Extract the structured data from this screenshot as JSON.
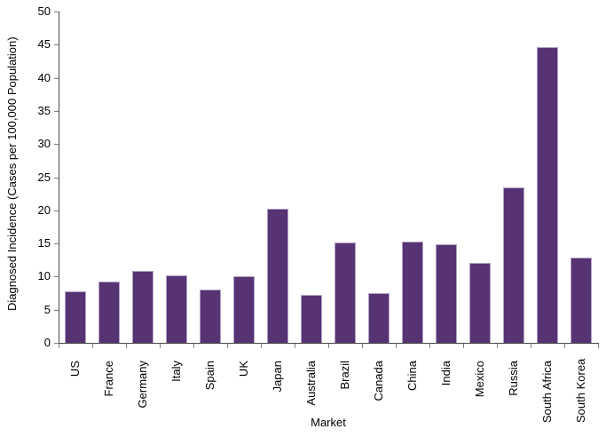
{
  "chart_data": {
    "type": "bar",
    "title": "",
    "xlabel": "Market",
    "ylabel": "Diagnosed Incidence (Cases per 100,000 Population)",
    "categories": [
      "US",
      "France",
      "Germany",
      "Italy",
      "Spain",
      "UK",
      "Japan",
      "Australia",
      "Brazil",
      "Canada",
      "China",
      "India",
      "Mexico",
      "Russia",
      "South Africa",
      "South Korea"
    ],
    "values": [
      7.8,
      9.2,
      10.9,
      10.2,
      8.1,
      10.1,
      20.3,
      7.3,
      15.1,
      7.5,
      15.3,
      14.9,
      12.0,
      23.5,
      44.7,
      12.9
    ],
    "ylim": [
      0,
      50
    ],
    "ytick_step": 5,
    "ytick_labels": [
      "0",
      "5",
      "10",
      "15",
      "20",
      "25",
      "30",
      "35",
      "40",
      "45",
      "50"
    ],
    "grid": false,
    "legend": "none",
    "colors": {
      "bar_fill": "#563373",
      "bar_border": "#b2a2c7",
      "axis_line": "#4a4a4a",
      "tick_mark": "#7f7f7f",
      "text": "#000000",
      "background": "#ffffff"
    }
  }
}
